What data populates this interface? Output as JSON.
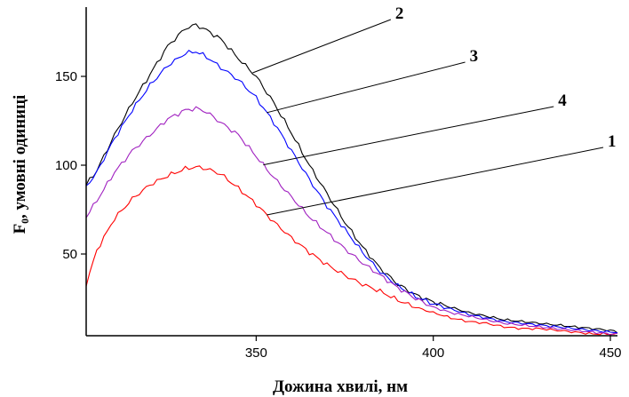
{
  "chart_data": {
    "type": "line",
    "xlabel": "Дожина хвилі, нм",
    "ylabel": "F₀, умовні одиниці",
    "xlim": [
      302,
      452
    ],
    "ylim": [
      4,
      189
    ],
    "x_ticks": [
      350,
      400,
      450
    ],
    "y_ticks": [
      50,
      100,
      150
    ],
    "grid": false,
    "series": [
      {
        "name": "1",
        "color": "#ff0000",
        "label_at": 353,
        "points": [
          [
            302,
            33
          ],
          [
            305,
            52
          ],
          [
            310,
            70
          ],
          [
            315,
            81
          ],
          [
            320,
            89
          ],
          [
            325,
            94
          ],
          [
            330,
            98
          ],
          [
            333,
            99
          ],
          [
            336,
            98
          ],
          [
            340,
            95
          ],
          [
            345,
            87
          ],
          [
            350,
            78
          ],
          [
            355,
            68
          ],
          [
            360,
            59
          ],
          [
            365,
            51
          ],
          [
            370,
            44
          ],
          [
            375,
            38
          ],
          [
            380,
            33
          ],
          [
            385,
            29
          ],
          [
            390,
            24
          ],
          [
            395,
            20
          ],
          [
            400,
            17
          ],
          [
            405,
            14
          ],
          [
            410,
            12
          ],
          [
            415,
            11
          ],
          [
            420,
            9
          ],
          [
            425,
            8
          ],
          [
            430,
            8
          ],
          [
            435,
            7
          ],
          [
            440,
            6
          ],
          [
            445,
            5
          ],
          [
            450,
            5
          ],
          [
            452,
            5
          ]
        ]
      },
      {
        "name": "2",
        "color": "#000000",
        "label_at": 349,
        "points": [
          [
            302,
            89
          ],
          [
            305,
            97
          ],
          [
            310,
            117
          ],
          [
            315,
            135
          ],
          [
            320,
            151
          ],
          [
            325,
            167
          ],
          [
            330,
            177
          ],
          [
            333,
            179
          ],
          [
            336,
            176
          ],
          [
            340,
            171
          ],
          [
            345,
            160
          ],
          [
            350,
            150
          ],
          [
            355,
            135
          ],
          [
            360,
            118
          ],
          [
            365,
            100
          ],
          [
            370,
            84
          ],
          [
            375,
            68
          ],
          [
            380,
            54
          ],
          [
            385,
            42
          ],
          [
            390,
            33
          ],
          [
            395,
            27
          ],
          [
            400,
            23
          ],
          [
            405,
            20
          ],
          [
            410,
            17
          ],
          [
            415,
            15
          ],
          [
            420,
            13
          ],
          [
            425,
            12
          ],
          [
            430,
            11
          ],
          [
            435,
            10
          ],
          [
            440,
            9
          ],
          [
            445,
            8
          ],
          [
            450,
            7
          ],
          [
            452,
            6
          ]
        ]
      },
      {
        "name": "3",
        "color": "#0000ff",
        "label_at": 353,
        "points": [
          [
            302,
            88
          ],
          [
            305,
            96
          ],
          [
            310,
            115
          ],
          [
            315,
            131
          ],
          [
            320,
            145
          ],
          [
            325,
            156
          ],
          [
            330,
            163
          ],
          [
            333,
            164
          ],
          [
            336,
            161
          ],
          [
            340,
            155
          ],
          [
            345,
            148
          ],
          [
            350,
            138
          ],
          [
            355,
            124
          ],
          [
            360,
            108
          ],
          [
            365,
            92
          ],
          [
            370,
            77
          ],
          [
            375,
            64
          ],
          [
            380,
            51
          ],
          [
            385,
            40
          ],
          [
            390,
            32
          ],
          [
            395,
            26
          ],
          [
            400,
            22
          ],
          [
            405,
            19
          ],
          [
            410,
            16
          ],
          [
            415,
            14
          ],
          [
            420,
            12
          ],
          [
            425,
            11
          ],
          [
            430,
            10
          ],
          [
            435,
            9
          ],
          [
            440,
            8
          ],
          [
            445,
            7
          ],
          [
            450,
            6
          ],
          [
            452,
            6
          ]
        ]
      },
      {
        "name": "4",
        "color": "#a020c0",
        "label_at": 352,
        "points": [
          [
            302,
            71
          ],
          [
            305,
            80
          ],
          [
            310,
            96
          ],
          [
            315,
            108
          ],
          [
            320,
            117
          ],
          [
            325,
            126
          ],
          [
            330,
            131
          ],
          [
            333,
            132
          ],
          [
            336,
            130
          ],
          [
            340,
            124
          ],
          [
            345,
            117
          ],
          [
            350,
            105
          ],
          [
            355,
            93
          ],
          [
            360,
            82
          ],
          [
            365,
            71
          ],
          [
            370,
            62
          ],
          [
            375,
            53
          ],
          [
            380,
            45
          ],
          [
            385,
            38
          ],
          [
            390,
            31
          ],
          [
            395,
            25
          ],
          [
            400,
            20
          ],
          [
            405,
            17
          ],
          [
            410,
            15
          ],
          [
            415,
            13
          ],
          [
            420,
            11
          ],
          [
            425,
            10
          ],
          [
            430,
            9
          ],
          [
            435,
            8
          ],
          [
            440,
            7
          ],
          [
            445,
            6
          ],
          [
            450,
            5
          ],
          [
            452,
            5
          ]
        ]
      }
    ],
    "callouts": [
      {
        "name": "2",
        "end_x": 388,
        "end_y": 182
      },
      {
        "name": "3",
        "end_x": 409,
        "end_y": 158
      },
      {
        "name": "4",
        "end_x": 434,
        "end_y": 133
      },
      {
        "name": "1",
        "end_x": 448,
        "end_y": 110
      }
    ]
  }
}
